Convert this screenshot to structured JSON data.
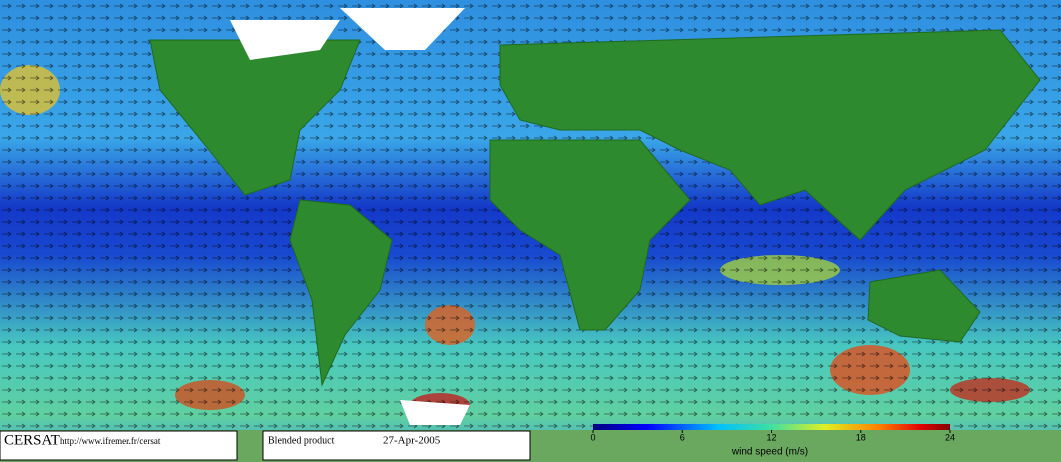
{
  "logo": "CERSAT",
  "url": "http://www.ifremer.fr/cersat",
  "product": "Blended product",
  "date": "27-Apr-2005",
  "colorbar": {
    "label": "wind speed (m/s)",
    "lim": [
      0,
      24
    ],
    "ticks": [
      0,
      6,
      12,
      18,
      24
    ]
  }
}
